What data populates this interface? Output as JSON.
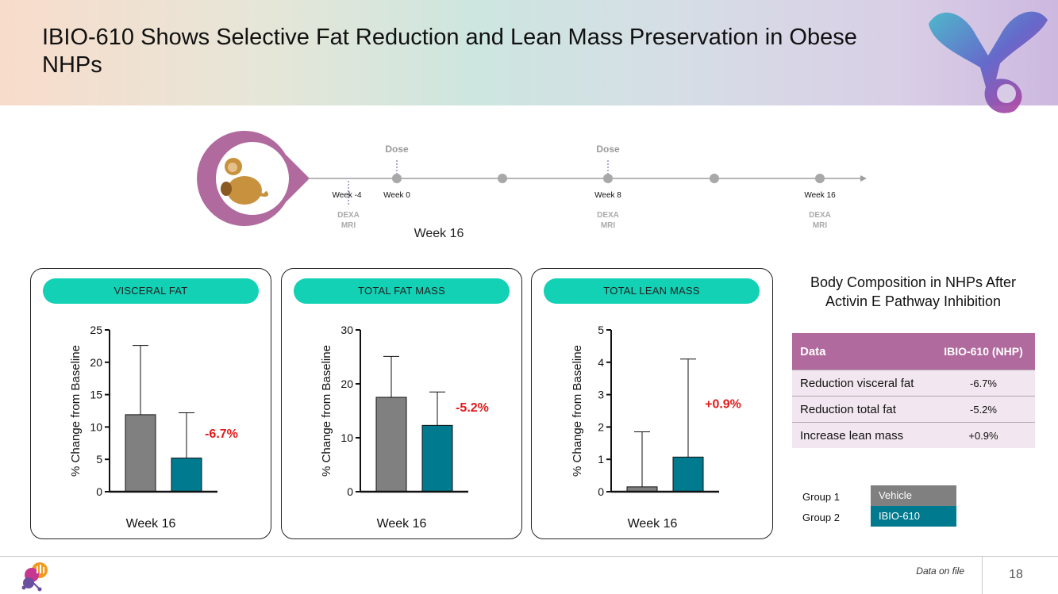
{
  "title": "IBIO-610 Shows Selective Fat Reduction and Lean Mass Preservation in Obese NHPs",
  "colors": {
    "vehicle": "#808080",
    "ibio": "#007a8e",
    "pill": "#12d1b4",
    "accent": "#b06a9d",
    "highlight": "#e21a1a"
  },
  "timeline": {
    "subject_icon": "monkey-icon",
    "dose_labels": [
      "Dose",
      "Dose"
    ],
    "week_labels": [
      "Week -4",
      "Week 0",
      "Week 8",
      "Week 16"
    ],
    "scan_labels": [
      {
        "line1": "DEXA",
        "line2": "MRI"
      },
      {
        "line1": "DEXA",
        "line2": "MRI"
      },
      {
        "line1": "DEXA",
        "line2": "MRI"
      }
    ],
    "caption": "Week 16"
  },
  "chart_data": [
    {
      "type": "bar",
      "panel_title": "VISCERAL FAT",
      "ylabel": "% Change from Baseline",
      "xlabel": "Week 16",
      "ylim": [
        0,
        25
      ],
      "yticks": [
        0,
        5,
        10,
        15,
        20,
        25
      ],
      "series": [
        {
          "name": "Vehicle",
          "value": 11.9,
          "error_upper": 22.6
        },
        {
          "name": "IBIO-610",
          "value": 5.2,
          "error_upper": 12.2
        }
      ],
      "annotation": "-6.7%"
    },
    {
      "type": "bar",
      "panel_title": "TOTAL FAT MASS",
      "ylabel": "% Change from Baseline",
      "xlabel": "Week 16",
      "ylim": [
        0,
        30
      ],
      "yticks": [
        0,
        10,
        20,
        30
      ],
      "series": [
        {
          "name": "Vehicle",
          "value": 17.5,
          "error_upper": 25.1
        },
        {
          "name": "IBIO-610",
          "value": 12.3,
          "error_upper": 18.5
        }
      ],
      "annotation": "-5.2%"
    },
    {
      "type": "bar",
      "panel_title": "TOTAL LEAN MASS",
      "ylabel": "% Change from Baseline",
      "xlabel": "Week 16",
      "ylim": [
        0,
        5
      ],
      "yticks": [
        0,
        1,
        2,
        3,
        4,
        5
      ],
      "series": [
        {
          "name": "Vehicle",
          "value": 0.15,
          "error_upper": 1.85
        },
        {
          "name": "IBIO-610",
          "value": 1.07,
          "error_upper": 4.1
        }
      ],
      "annotation": "+0.9%"
    }
  ],
  "side": {
    "title": "Body Composition in NHPs After Activin E Pathway Inhibition",
    "table": {
      "header": [
        "Data",
        "IBIO-610 (NHP)"
      ],
      "rows": [
        [
          "Reduction visceral fat",
          "-6.7%"
        ],
        [
          "Reduction total fat",
          "-5.2%"
        ],
        [
          "Increase lean mass",
          "+0.9%"
        ]
      ]
    },
    "legend": [
      {
        "group": "Group 1",
        "label": "Vehicle",
        "color": "#808080"
      },
      {
        "group": "Group 2",
        "label": "IBIO-610",
        "color": "#007a8e"
      }
    ]
  },
  "footer": {
    "note": "Data on file",
    "page": "18"
  }
}
